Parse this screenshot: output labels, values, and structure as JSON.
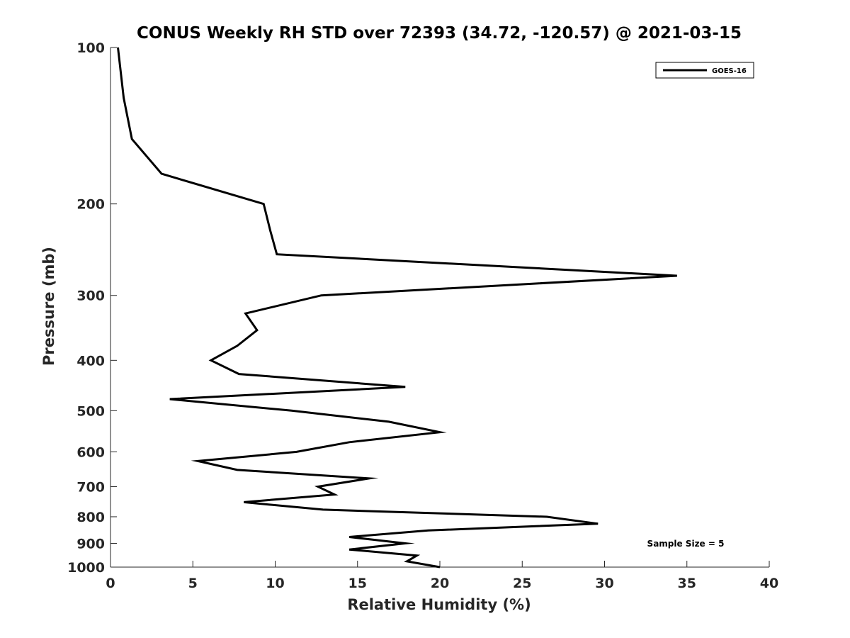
{
  "chart_data": {
    "type": "line",
    "title": "CONUS Weekly RH STD over 72393 (34.72, -120.57) @ 2021-03-15",
    "xlabel": "Relative Humidity (%)",
    "ylabel": "Pressure (mb)",
    "xlim": [
      0,
      40
    ],
    "ylim": [
      100,
      1000
    ],
    "yscale": "log",
    "y_reversed": true,
    "x_ticks": [
      0,
      5,
      10,
      15,
      20,
      25,
      30,
      35,
      40
    ],
    "y_ticks": [
      100,
      200,
      300,
      400,
      500,
      600,
      700,
      800,
      900,
      1000
    ],
    "grid": false,
    "legend_position": "top-right",
    "series": [
      {
        "name": "GOES-16",
        "color": "#000000",
        "points": [
          {
            "p": 100,
            "rh": 0.45
          },
          {
            "p": 125,
            "rh": 0.8
          },
          {
            "p": 150,
            "rh": 1.3
          },
          {
            "p": 175,
            "rh": 3.1
          },
          {
            "p": 200,
            "rh": 9.3
          },
          {
            "p": 225,
            "rh": 9.7
          },
          {
            "p": 250,
            "rh": 10.1
          },
          {
            "p": 275,
            "rh": 34.4
          },
          {
            "p": 300,
            "rh": 12.8
          },
          {
            "p": 325,
            "rh": 8.2
          },
          {
            "p": 350,
            "rh": 8.9
          },
          {
            "p": 375,
            "rh": 7.7
          },
          {
            "p": 400,
            "rh": 6.1
          },
          {
            "p": 425,
            "rh": 7.8
          },
          {
            "p": 450,
            "rh": 17.9
          },
          {
            "p": 475,
            "rh": 3.6
          },
          {
            "p": 500,
            "rh": 11.0
          },
          {
            "p": 525,
            "rh": 16.9
          },
          {
            "p": 550,
            "rh": 20.0
          },
          {
            "p": 575,
            "rh": 14.5
          },
          {
            "p": 600,
            "rh": 11.3
          },
          {
            "p": 625,
            "rh": 5.3
          },
          {
            "p": 650,
            "rh": 7.7
          },
          {
            "p": 675,
            "rh": 15.7
          },
          {
            "p": 700,
            "rh": 12.6
          },
          {
            "p": 725,
            "rh": 13.6
          },
          {
            "p": 750,
            "rh": 8.1
          },
          {
            "p": 775,
            "rh": 12.9
          },
          {
            "p": 800,
            "rh": 26.5
          },
          {
            "p": 825,
            "rh": 29.6
          },
          {
            "p": 850,
            "rh": 19.3
          },
          {
            "p": 875,
            "rh": 14.5
          },
          {
            "p": 900,
            "rh": 17.9
          },
          {
            "p": 925,
            "rh": 14.5
          },
          {
            "p": 950,
            "rh": 18.6
          },
          {
            "p": 975,
            "rh": 18.0
          },
          {
            "p": 1000,
            "rh": 20.0
          }
        ]
      }
    ],
    "legend": [
      "GOES-16"
    ],
    "annotation": "Sample Size = 5"
  }
}
